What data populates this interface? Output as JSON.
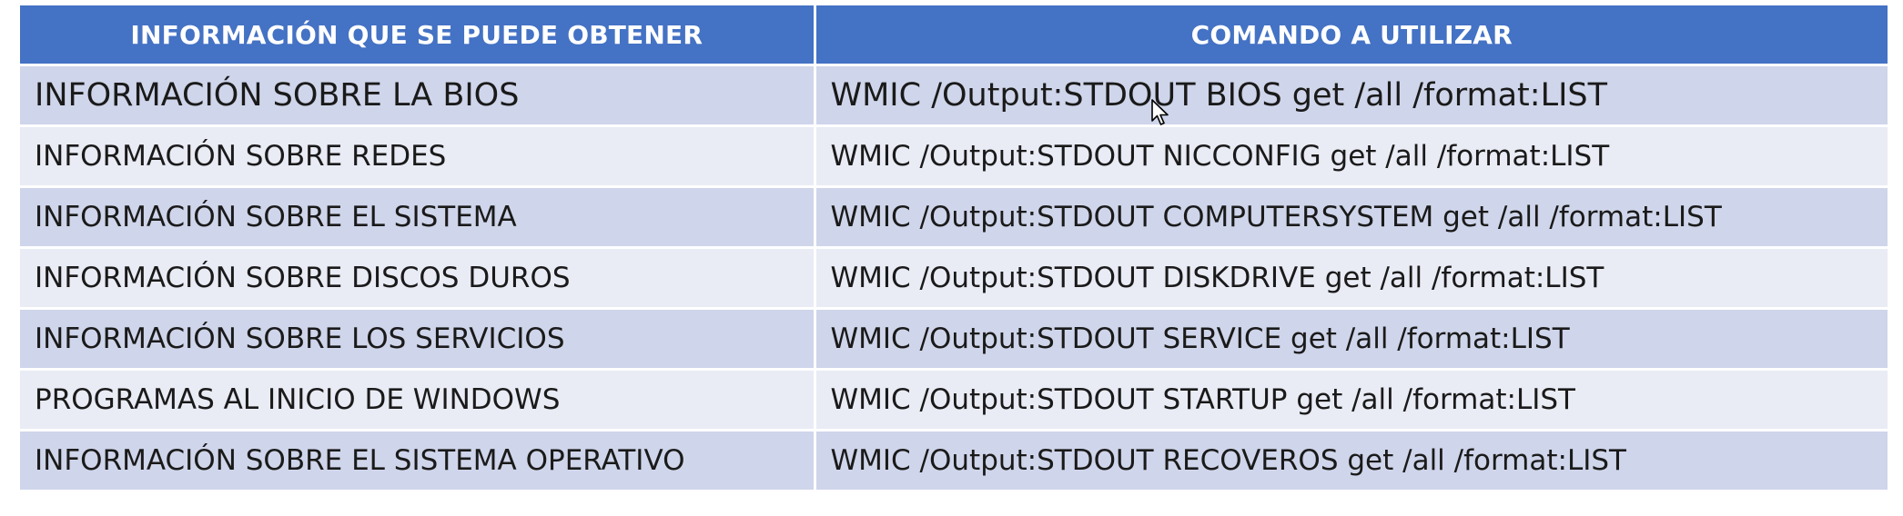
{
  "table": {
    "headers": [
      "INFORMACIÓN QUE SE PUEDE OBTENER",
      "COMANDO A UTILIZAR"
    ],
    "rows": [
      [
        "INFORMACIÓN SOBRE LA BIOS",
        "WMIC /Output:STDOUT BIOS get /all /format:LIST"
      ],
      [
        "INFORMACIÓN SOBRE REDES",
        "WMIC /Output:STDOUT NICCONFIG get /all /format:LIST"
      ],
      [
        "INFORMACIÓN SOBRE EL SISTEMA",
        "WMIC /Output:STDOUT COMPUTERSYSTEM get /all /format:LIST"
      ],
      [
        "INFORMACIÓN SOBRE DISCOS DUROS",
        "WMIC /Output:STDOUT DISKDRIVE get /all /format:LIST"
      ],
      [
        "INFORMACIÓN SOBRE LOS SERVICIOS",
        "WMIC /Output:STDOUT SERVICE get /all /format:LIST"
      ],
      [
        "PROGRAMAS AL INICIO DE WINDOWS",
        "WMIC /Output:STDOUT STARTUP get /all /format:LIST"
      ],
      [
        "INFORMACIÓN SOBRE EL SISTEMA OPERATIVO",
        "WMIC /Output:STDOUT RECOVEROS get /all /format:LIST"
      ]
    ]
  },
  "colors": {
    "header_bg": "#4472c4",
    "row_dark": "#cfd5ea",
    "row_light": "#e9ebf5"
  },
  "icons": {
    "cursor": "mouse-pointer-icon"
  }
}
